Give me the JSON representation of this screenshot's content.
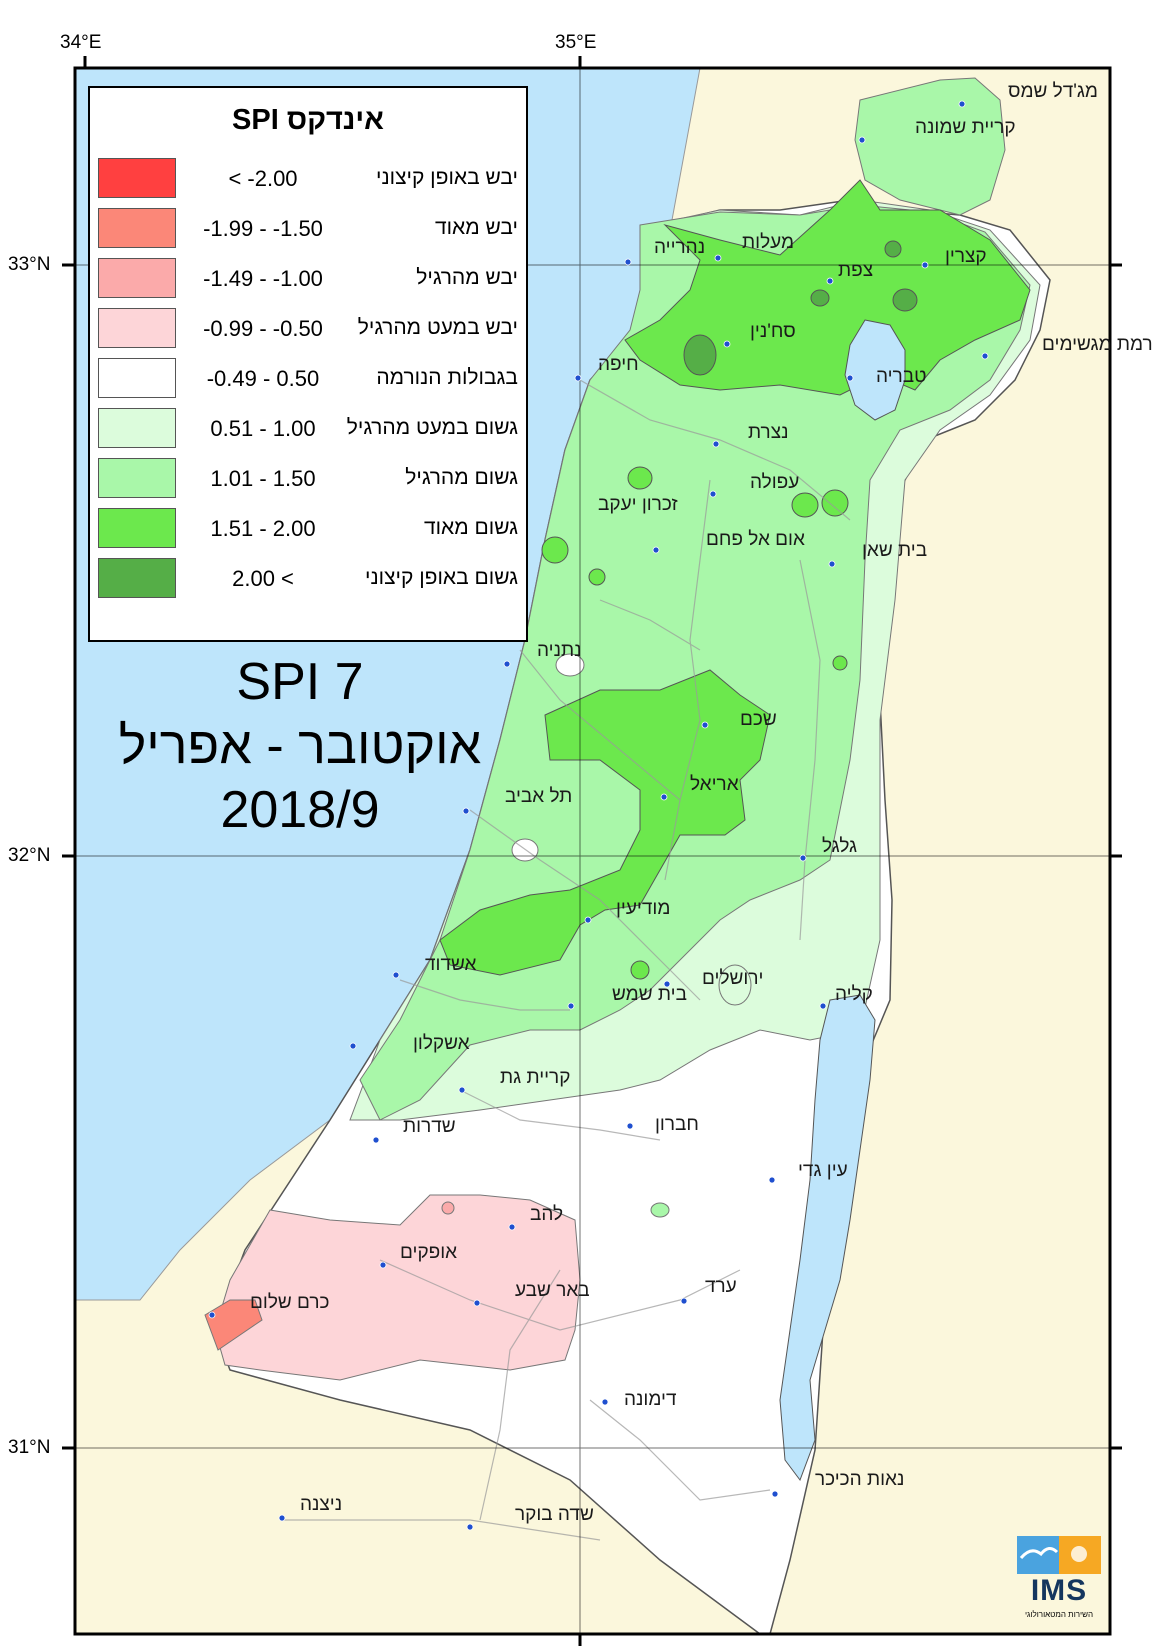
{
  "grid": {
    "lon_labels": [
      "34°E",
      "35°E"
    ],
    "lat_labels": [
      "33°N",
      "32°N",
      "31°N"
    ]
  },
  "legend": {
    "title": "אינדקס SPI",
    "items": [
      {
        "range": "< -2.00",
        "label": "יבש באופן קיצוני",
        "color": "#ff4040"
      },
      {
        "range": "-1.99 - -1.50",
        "label": "יבש מאוד",
        "color": "#fb8778"
      },
      {
        "range": "-1.49 - -1.00",
        "label": "יבש מהרגיל",
        "color": "#fbaaaa"
      },
      {
        "range": "-0.99 - -0.50",
        "label": "יבש במעט מהרגיל",
        "color": "#fdd5d8"
      },
      {
        "range": "-0.49 - 0.50",
        "label": "בגבולות הנורמה",
        "color": "#ffffff"
      },
      {
        "range": "0.51 - 1.00",
        "label": "גשום במעט מהרגיל",
        "color": "#dcfcdc"
      },
      {
        "range": "1.01 - 1.50",
        "label": "גשום מהרגיל",
        "color": "#a9f7a9"
      },
      {
        "range": "1.51 - 2.00",
        "label": "גשום מאוד",
        "color": "#6ce84d"
      },
      {
        "range": "2.00 <",
        "label": "גשום באופן קיצוני",
        "color": "#55ae47"
      }
    ]
  },
  "title": {
    "line1": "SPI 7",
    "line2": "אוקטובר - אפריל",
    "line3": "2018/9"
  },
  "cities": [
    "מג'דל שמס",
    "קריית שמונה",
    "מעלות",
    "נהרייה",
    "קצרין",
    "צפת",
    "סח'נין",
    "רמת מגשימים",
    "חיפה",
    "טבריה",
    "נצרת",
    "עפולה",
    "זכרון יעקב",
    "אום אל פחם",
    "בית שאן",
    "נתניה",
    "שכם",
    "אריאל",
    "תל אביב",
    "גלגל",
    "מודיעין",
    "אשדוד",
    "ירושלים",
    "בית שמש",
    "קליה",
    "אשקלון",
    "קריית גת",
    "שדרות",
    "חברון",
    "עין גדי",
    "להב",
    "אופקים",
    "כרם שלום",
    "באר שבע",
    "ערד",
    "דימונה",
    "נאות הכיכר",
    "ניצנה",
    "שדה בוקר"
  ],
  "logo": {
    "text": "IMS",
    "subtitle": "השירות המטאורולוגי"
  },
  "colors": {
    "sea": "#bee5fb",
    "land_outside": "#fbf7dc"
  }
}
